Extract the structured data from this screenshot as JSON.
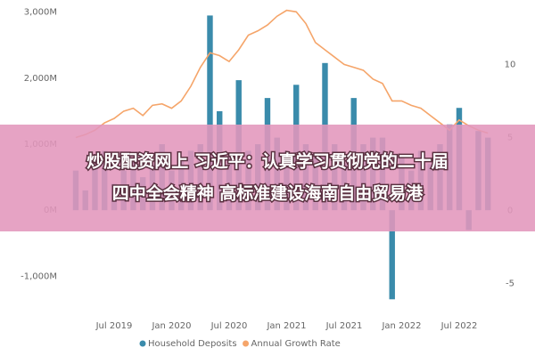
{
  "chart_data": {
    "type": "bar-line",
    "categories": [
      null,
      null,
      null,
      null,
      "Jul 2019",
      null,
      null,
      null,
      null,
      null,
      "Jan 2020",
      null,
      null,
      null,
      null,
      null,
      "Jul 2020",
      null,
      null,
      null,
      null,
      null,
      "Jan 2021",
      null,
      null,
      null,
      null,
      null,
      "Jul 2021",
      null,
      null,
      null,
      null,
      null,
      "Jan 2022",
      null,
      null,
      null,
      null,
      null,
      "Jul 2022",
      null,
      null,
      null
    ],
    "series": [
      {
        "name": "Household Deposits",
        "type": "bar",
        "color": "#3a8bab",
        "values": [
          600,
          300,
          700,
          900,
          400,
          600,
          800,
          500,
          700,
          1000,
          600,
          800,
          900,
          1000,
          2950,
          1500,
          800,
          1970,
          900,
          1000,
          1700,
          1100,
          900,
          1900,
          1000,
          800,
          2230,
          1000,
          700,
          1700,
          1000,
          1100,
          1100,
          -1350,
          800,
          600,
          900,
          700,
          1000,
          1300,
          1550,
          -300,
          1200,
          1100
        ]
      },
      {
        "name": "Annual Growth Rate",
        "type": "line",
        "axis": "y2",
        "color": "#f5a56a",
        "values": [
          5,
          5.2,
          5.5,
          6,
          6.3,
          6.8,
          7,
          6.5,
          7.2,
          7.3,
          7,
          7.5,
          8.5,
          9.8,
          10.8,
          10.6,
          10.2,
          11,
          12,
          12.3,
          12.7,
          13.3,
          13.7,
          13.6,
          12.8,
          11.5,
          11,
          10.5,
          10,
          9.8,
          9.6,
          9,
          8.7,
          7.5,
          7.5,
          7.2,
          7,
          6.5,
          6,
          5.5,
          6.2,
          5.8,
          5.5,
          5.3
        ]
      }
    ],
    "ylim": [
      -1400,
      3050
    ],
    "yticks": [
      {
        "value": 3000,
        "label": "3,000M"
      },
      {
        "value": 2000,
        "label": "2,000M"
      },
      {
        "value": 1000,
        "label": "1,000M"
      },
      {
        "value": 0,
        "label": "0M"
      },
      {
        "value": -1000,
        "label": "-1,000M"
      }
    ],
    "y2lim": [
      -6.3,
      13.8
    ],
    "y2ticks": [
      10,
      5,
      0,
      -5
    ],
    "grid": false
  },
  "overlay": {
    "lines": [
      "炒股配资网上 习近平：认真学习贯彻党的二十届",
      "四中全会精神 高标准建设海南自由贸易港"
    ]
  }
}
